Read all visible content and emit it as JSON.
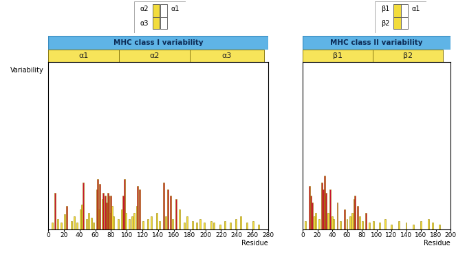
{
  "chart_data": [
    {
      "type": "bar",
      "title": "MHC class I variability",
      "ylabel": "Variability",
      "xlabel": "Residue",
      "domains": [
        {
          "name": "α1",
          "start": 0,
          "end": 90
        },
        {
          "name": "α2",
          "start": 90,
          "end": 180
        },
        {
          "name": "α3",
          "start": 180,
          "end": 275
        }
      ],
      "x": [
        5,
        9,
        12,
        17,
        21,
        24,
        30,
        33,
        37,
        41,
        43,
        45,
        49,
        52,
        55,
        58,
        62,
        63,
        65,
        66,
        69,
        70,
        73,
        74,
        76,
        77,
        79,
        80,
        81,
        83,
        89,
        94,
        95,
        97,
        99,
        103,
        107,
        109,
        113,
        114,
        116,
        121,
        127,
        131,
        138,
        142,
        147,
        150,
        152,
        156,
        158,
        163,
        167,
        173,
        177,
        184,
        189,
        193,
        199,
        207,
        211,
        219,
        225,
        232,
        239,
        245,
        253,
        261,
        268
      ],
      "values": [
        4,
        22,
        6,
        4,
        9,
        14,
        5,
        8,
        4,
        12,
        15,
        28,
        6,
        10,
        7,
        4,
        24,
        30,
        12,
        27,
        18,
        22,
        20,
        16,
        22,
        20,
        10,
        20,
        14,
        8,
        6,
        12,
        20,
        30,
        10,
        6,
        8,
        10,
        14,
        26,
        24,
        5,
        6,
        8,
        10,
        5,
        28,
        8,
        24,
        20,
        6,
        18,
        12,
        4,
        8,
        5,
        4,
        6,
        4,
        5,
        4,
        3,
        5,
        4,
        6,
        8,
        4,
        5,
        3
      ],
      "colors": [
        "#f2dc3c",
        "#c8102e",
        "#f2dc3c",
        "#f2dc3c",
        "#f2dc3c",
        "#c8102e",
        "#f2dc3c",
        "#f2dc3c",
        "#f2dc3c",
        "#f2dc3c",
        "#f2dc3c",
        "#c8102e",
        "#f2dc3c",
        "#f2dc3c",
        "#f2dc3c",
        "#f2dc3c",
        "#c8102e",
        "#c8102e",
        "#f2dc3c",
        "#c8102e",
        "#f2dc3c",
        "#c8102e",
        "#c8102e",
        "#c8102e",
        "#c8102e",
        "#c8102e",
        "#f2dc3c",
        "#c8102e",
        "#f2dc3c",
        "#f2dc3c",
        "#f2dc3c",
        "#f2dc3c",
        "#c8102e",
        "#c8102e",
        "#f2dc3c",
        "#f2dc3c",
        "#f2dc3c",
        "#f2dc3c",
        "#f2dc3c",
        "#c8102e",
        "#c8102e",
        "#f2dc3c",
        "#f2dc3c",
        "#f2dc3c",
        "#f2dc3c",
        "#f2dc3c",
        "#c8102e",
        "#f2dc3c",
        "#c8102e",
        "#c8102e",
        "#f2dc3c",
        "#c8102e",
        "#f2dc3c",
        "#f2dc3c",
        "#f2dc3c",
        "#f2dc3c",
        "#f2dc3c",
        "#f2dc3c",
        "#f2dc3c",
        "#f2dc3c",
        "#f2dc3c",
        "#f2dc3c",
        "#f2dc3c",
        "#f2dc3c",
        "#f2dc3c",
        "#f2dc3c",
        "#f2dc3c",
        "#f2dc3c",
        "#f2dc3c"
      ],
      "xlim": [
        0,
        280
      ],
      "xticks": [
        0,
        20,
        40,
        60,
        80,
        100,
        120,
        140,
        160,
        180,
        200,
        220,
        240,
        260,
        280
      ],
      "ylim": [
        0,
        100
      ],
      "yticks": [],
      "tick_labels": "x"
    },
    {
      "type": "bar",
      "title": "MHC class II variability",
      "xlabel": "Residue",
      "domains": [
        {
          "name": "β1",
          "start": 0,
          "end": 95
        },
        {
          "name": "β2",
          "start": 95,
          "end": 190
        }
      ],
      "x": [
        4,
        9,
        11,
        13,
        16,
        18,
        22,
        26,
        28,
        30,
        31,
        32,
        34,
        37,
        40,
        42,
        47,
        51,
        57,
        60,
        64,
        67,
        70,
        71,
        74,
        77,
        81,
        86,
        90,
        96,
        104,
        112,
        120,
        130,
        140,
        150,
        160,
        170,
        176,
        185
      ],
      "values": [
        5,
        26,
        20,
        16,
        8,
        10,
        6,
        28,
        24,
        32,
        20,
        22,
        10,
        24,
        8,
        6,
        16,
        5,
        12,
        6,
        8,
        10,
        18,
        20,
        14,
        8,
        5,
        10,
        4,
        5,
        4,
        6,
        3,
        5,
        4,
        3,
        5,
        6,
        4,
        3
      ],
      "colors": [
        "#f2dc3c",
        "#c8102e",
        "#c8102e",
        "#c8102e",
        "#f2dc3c",
        "#f2dc3c",
        "#f2dc3c",
        "#c8102e",
        "#c8102e",
        "#c8102e",
        "#c8102e",
        "#c8102e",
        "#f2dc3c",
        "#c8102e",
        "#f2dc3c",
        "#f2dc3c",
        "#c8102e",
        "#f2dc3c",
        "#c8102e",
        "#f2dc3c",
        "#f2dc3c",
        "#f2dc3c",
        "#c8102e",
        "#c8102e",
        "#c8102e",
        "#f2dc3c",
        "#f2dc3c",
        "#c8102e",
        "#f2dc3c",
        "#f2dc3c",
        "#f2dc3c",
        "#f2dc3c",
        "#f2dc3c",
        "#f2dc3c",
        "#f2dc3c",
        "#f2dc3c",
        "#f2dc3c",
        "#f2dc3c",
        "#f2dc3c",
        "#f2dc3c"
      ],
      "xlim": [
        0,
        200
      ],
      "xticks": [
        0,
        20,
        40,
        60,
        80,
        100,
        120,
        140,
        160,
        180,
        200
      ],
      "ylim": [
        0,
        100
      ],
      "yticks": [],
      "tick_labels": "x"
    }
  ],
  "diagrams": [
    {
      "labels": [
        "α2",
        "α1",
        "α3"
      ]
    },
    {
      "labels": [
        "β1",
        "α1",
        "β2"
      ]
    }
  ]
}
